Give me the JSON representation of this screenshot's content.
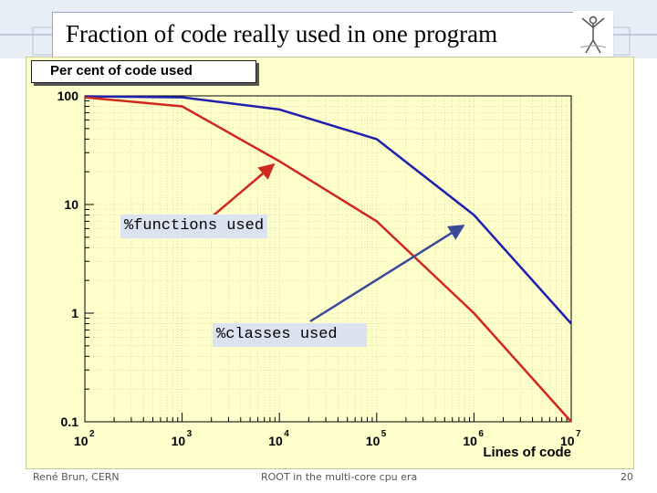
{
  "slide": {
    "title": "Fraction of code really used in one program",
    "footer_left": "René Brun, CERN",
    "footer_center": "ROOT in the multi-core cpu era",
    "page_number": "20"
  },
  "annotations": {
    "functions": "%functions used",
    "classes": "%classes used"
  },
  "colors": {
    "header_band": "#e8eef6",
    "plot_background": "#ffffcc",
    "classes_line": "#1f1fb0",
    "functions_line": "#d0281c",
    "arrow_functions": "#d0281c",
    "arrow_classes": "#3a4a9a"
  },
  "chart_data": {
    "type": "line",
    "title": "Per cent of code used",
    "xlabel": "Lines of code",
    "ylabel": "",
    "x_scale": "log",
    "y_scale": "log",
    "xlim": [
      100,
      10000000
    ],
    "ylim": [
      0.1,
      100
    ],
    "x_ticks": [
      {
        "value": 100,
        "label": "10",
        "exp": "2"
      },
      {
        "value": 1000,
        "label": "10",
        "exp": "3"
      },
      {
        "value": 10000,
        "label": "10",
        "exp": "4"
      },
      {
        "value": 100000,
        "label": "10",
        "exp": "5"
      },
      {
        "value": 1000000,
        "label": "10",
        "exp": "6"
      },
      {
        "value": 10000000,
        "label": "10",
        "exp": "7"
      }
    ],
    "y_ticks": [
      {
        "value": 100,
        "label": "100"
      },
      {
        "value": 10,
        "label": "10"
      },
      {
        "value": 1,
        "label": "1"
      },
      {
        "value": 0.1,
        "label": "0.1"
      }
    ],
    "grid": true,
    "series": [
      {
        "key": "classes",
        "x": [
          100,
          1000,
          10000,
          100000,
          1000000,
          10000000
        ],
        "y": [
          99,
          97,
          75,
          40,
          8,
          0.8
        ]
      },
      {
        "key": "functions",
        "x": [
          100,
          1000,
          10000,
          100000,
          1000000,
          10000000
        ],
        "y": [
          97,
          80,
          25,
          7,
          1,
          0.1
        ]
      }
    ]
  }
}
